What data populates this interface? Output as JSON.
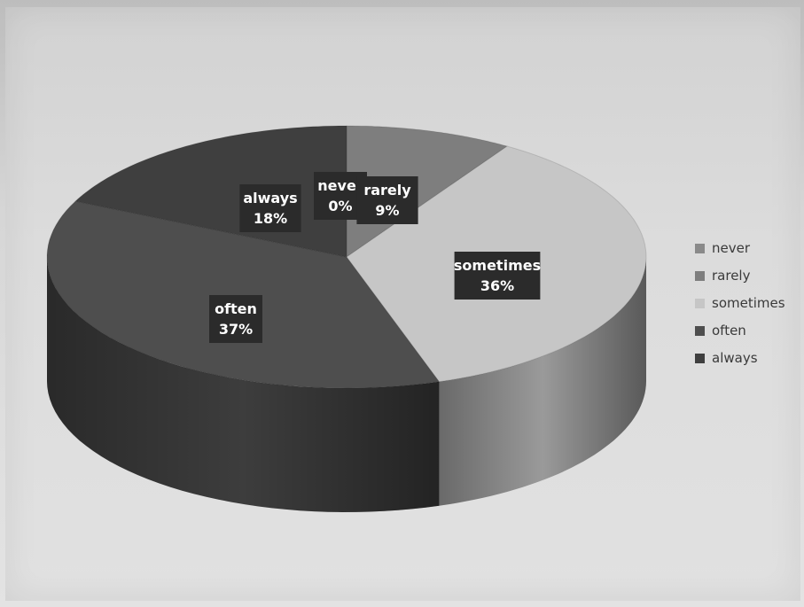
{
  "chart_data": {
    "type": "pie",
    "three_d": true,
    "categories": [
      "never",
      "rarely",
      "sometimes",
      "often",
      "always"
    ],
    "values": [
      0,
      9,
      36,
      37,
      18
    ],
    "unit": "%",
    "data_labels": [
      {
        "category": "never",
        "text": "never",
        "value_text": "0%"
      },
      {
        "category": "rarely",
        "text": "rarely",
        "value_text": "9%"
      },
      {
        "category": "sometimes",
        "text": "sometimes",
        "value_text": "36%"
      },
      {
        "category": "often",
        "text": "often",
        "value_text": "37%"
      },
      {
        "category": "always",
        "text": "always",
        "value_text": "18%"
      }
    ],
    "colors": {
      "never": "#8a8a8a",
      "rarely": "#7e7e7e",
      "sometimes": "#c6c6c6",
      "often": "#4e4e4e",
      "always": "#3f3f3f"
    },
    "legend": {
      "position": "right",
      "entries": [
        "never",
        "rarely",
        "sometimes",
        "often",
        "always"
      ]
    },
    "title": ""
  }
}
